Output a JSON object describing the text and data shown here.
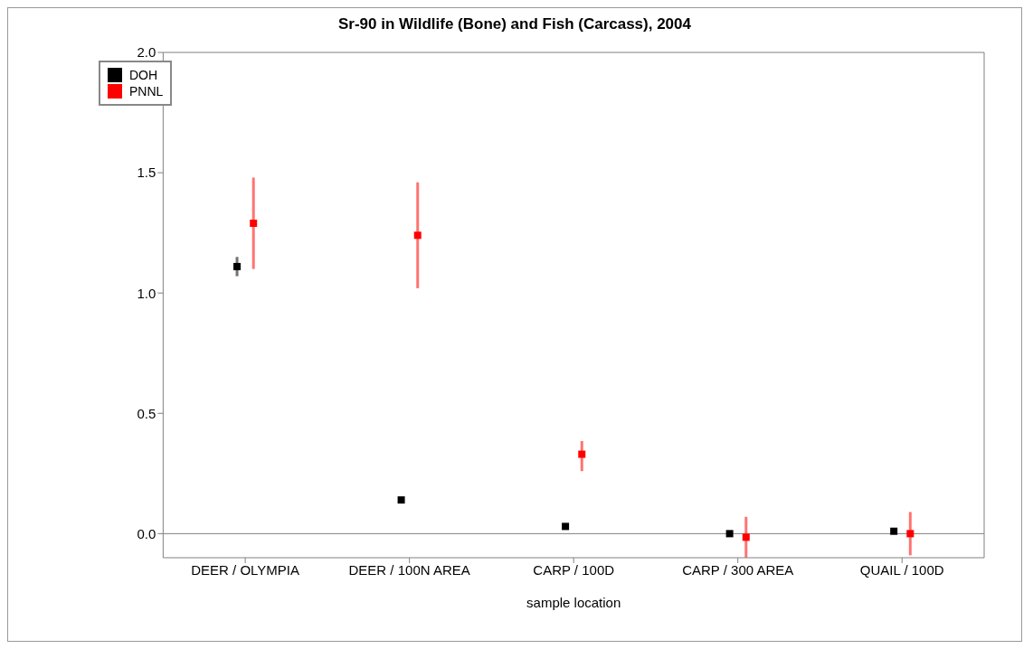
{
  "chart_data": {
    "type": "scatter",
    "title": "Sr-90 in Wildlife (Bone) and Fish (Carcass), 2004",
    "xlabel": "sample location",
    "categories": [
      "DEER / OLYMPIA",
      "DEER / 100N AREA",
      "CARP / 100D",
      "CARP / 300 AREA",
      "QUAIL / 100D"
    ],
    "series": [
      {
        "name": "DOH",
        "color": "#000000",
        "values": [
          1.11,
          0.14,
          0.03,
          0.0,
          0.01
        ],
        "errors": [
          [
            1.07,
            1.15
          ],
          null,
          null,
          null,
          null
        ]
      },
      {
        "name": "PNNL",
        "color": "#ff0000",
        "values": [
          1.29,
          1.24,
          0.33,
          -0.015,
          0.0
        ],
        "errors": [
          [
            1.1,
            1.48
          ],
          [
            1.02,
            1.46
          ],
          [
            0.26,
            0.385
          ],
          [
            -0.1,
            0.07
          ],
          [
            -0.09,
            0.09
          ]
        ]
      }
    ],
    "ylim": [
      -0.1,
      2.0
    ],
    "yticks": [
      {
        "value": 0,
        "label": "0.0"
      },
      {
        "value": 0.5,
        "label": "0.5"
      },
      {
        "value": 1,
        "label": "1.0"
      },
      {
        "value": 1.5,
        "label": "1.5"
      },
      {
        "value": 2,
        "label": "2.0"
      }
    ],
    "ref_lines": [
      {
        "axis": "y",
        "value": 0,
        "color": "#808080"
      }
    ],
    "marker": "square",
    "legend": "top left",
    "grid": false
  }
}
